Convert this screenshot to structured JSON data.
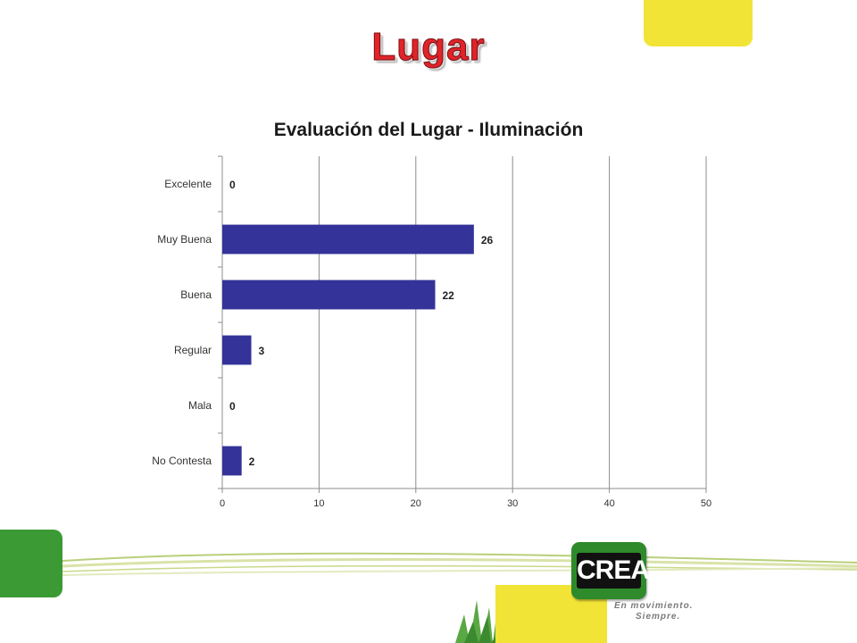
{
  "slide": {
    "title": "Lugar"
  },
  "logo": {
    "text": "CREA",
    "tagline_line1": "En movimiento.",
    "tagline_line2": "Siempre."
  },
  "colors": {
    "bar": "#333399",
    "grid": "#8c8c8c",
    "title_red": "#e0242a",
    "brand_green": "#3c9a35",
    "brand_yellow": "#f2e436"
  },
  "chart_data": {
    "type": "bar",
    "orientation": "horizontal",
    "title": "Evaluación del Lugar - Iluminación",
    "categories": [
      "Excelente",
      "Muy Buena",
      "Buena",
      "Regular",
      "Mala",
      "No Contesta"
    ],
    "values": [
      0,
      26,
      22,
      3,
      0,
      2
    ],
    "xlim": [
      0,
      50
    ],
    "xticks": [
      0,
      10,
      20,
      30,
      40,
      50
    ],
    "grid": "vertical",
    "legend": "none",
    "data_labels": true
  }
}
